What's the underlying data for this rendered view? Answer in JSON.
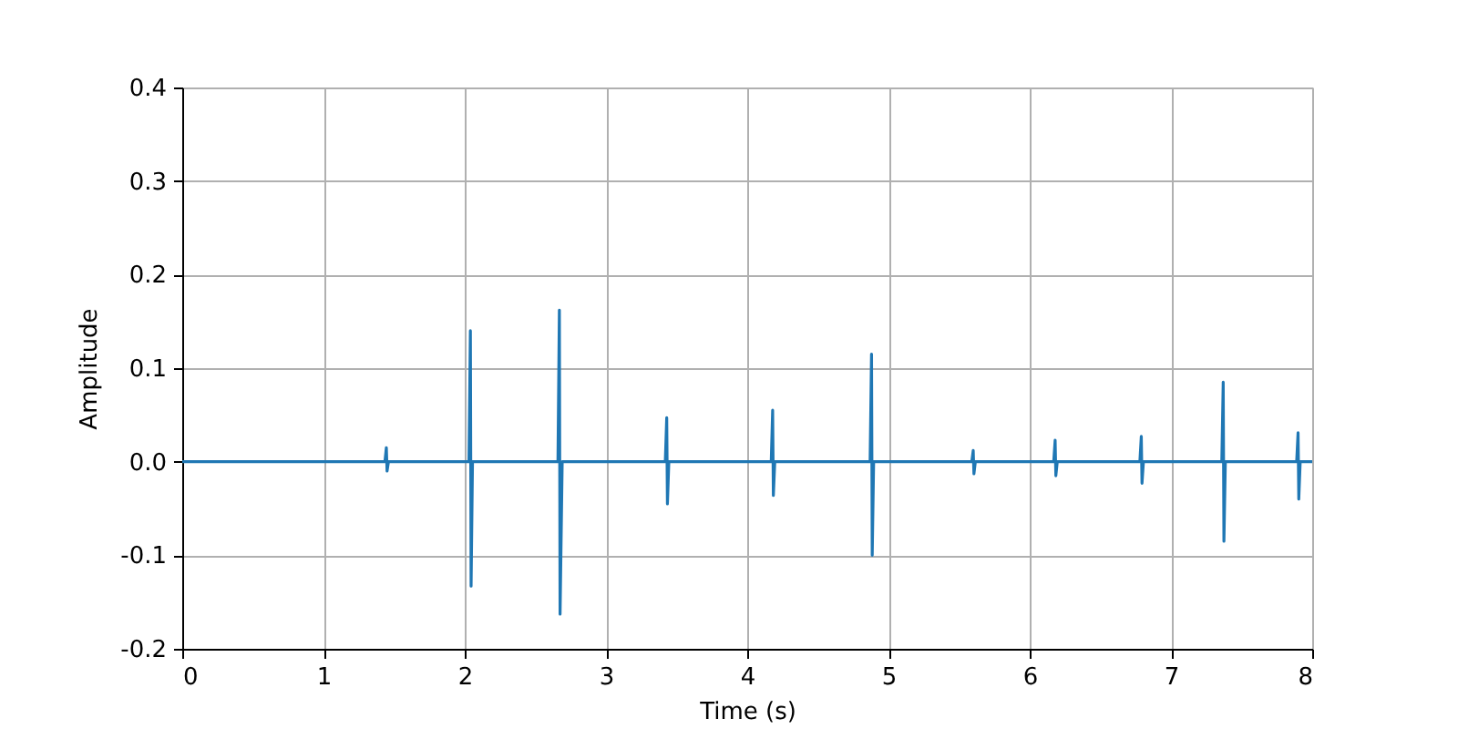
{
  "chart_data": {
    "type": "line",
    "xlabel": "Time (s)",
    "ylabel": "Amplitude",
    "x": [
      0,
      0.4,
      1.435,
      1.445,
      1.45,
      1.46,
      2.03,
      2.04,
      2.045,
      2.055,
      2.66,
      2.67,
      2.675,
      2.69,
      3.42,
      3.43,
      3.435,
      3.445,
      4.17,
      4.18,
      4.185,
      4.195,
      4.87,
      4.88,
      4.885,
      4.895,
      5.59,
      5.6,
      5.605,
      5.615,
      6.17,
      6.18,
      6.185,
      6.195,
      6.78,
      6.79,
      6.795,
      6.805,
      7.36,
      7.37,
      7.375,
      7.385,
      7.89,
      7.9,
      7.905,
      7.915,
      8
    ],
    "series": [
      {
        "color": "#1f77b4",
        "values": [
          0,
          0,
          0,
          0.015,
          -0.01,
          0,
          0,
          0.14,
          -0.133,
          0,
          0,
          0.162,
          -0.163,
          0,
          0,
          0.047,
          -0.045,
          0,
          0,
          0.055,
          -0.036,
          0,
          0,
          0.115,
          -0.1,
          0,
          0,
          0.012,
          -0.013,
          0,
          0,
          0.023,
          -0.015,
          0,
          0,
          0.027,
          -0.023,
          0,
          0,
          0.085,
          -0.085,
          0,
          0,
          0.031,
          -0.04,
          0,
          0
        ]
      }
    ],
    "xlim": [
      0,
      8
    ],
    "ylim": [
      -0.2,
      0.4
    ],
    "xticks": [
      0,
      1,
      2,
      3,
      4,
      5,
      6,
      7,
      8
    ],
    "yticks": [
      -0.2,
      -0.1,
      {
        "value": 0,
        "label": "0.0"
      },
      0.1,
      0.2,
      0.3,
      0.4
    ],
    "grid": true
  }
}
